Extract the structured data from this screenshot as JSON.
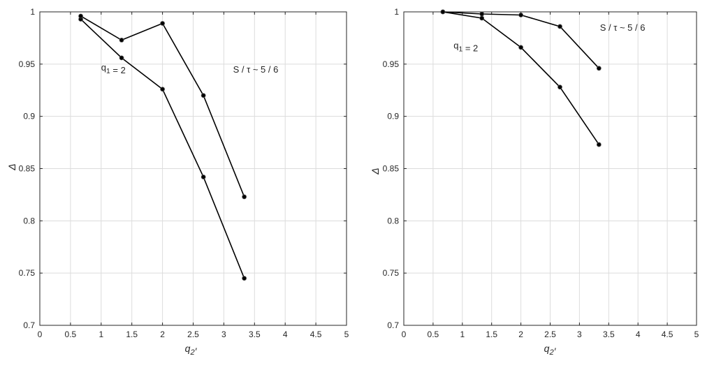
{
  "chart_data": [
    {
      "type": "line",
      "title": "",
      "xlabel": "q₂′",
      "ylabel": "Δ",
      "xlim": [
        0,
        5
      ],
      "ylim": [
        0.7,
        1
      ],
      "xticks": [
        0,
        0.5,
        1,
        1.5,
        2,
        2.5,
        3,
        3.5,
        4,
        4.5,
        5
      ],
      "xtick_labels": [
        "0",
        "0.5",
        "1",
        "1.5",
        "2",
        "2.5",
        "3",
        "3.5",
        "4",
        "4.5",
        "5"
      ],
      "yticks": [
        0.7,
        0.75,
        0.8,
        0.85,
        0.9,
        0.95,
        1
      ],
      "ytick_labels": [
        "0.7",
        "0.75",
        "0.8",
        "0.85",
        "0.9",
        "0.95",
        "1"
      ],
      "grid": true,
      "series": [
        {
          "x": [
            0.667,
            1.333,
            2.0,
            2.667,
            3.333
          ],
          "values": [
            0.993,
            0.956,
            0.926,
            0.842,
            0.745
          ]
        },
        {
          "x": [
            0.667,
            1.333,
            2.0,
            2.667,
            3.333
          ],
          "values": [
            0.996,
            0.973,
            0.989,
            0.92,
            0.823
          ]
        }
      ],
      "annotations": [
        {
          "text": "q₁ = 2",
          "x": 1.0,
          "y": 0.944
        },
        {
          "text": "S / τ ~ 5 / 6",
          "x": 3.15,
          "y": 0.942
        }
      ],
      "color": "#000000"
    },
    {
      "type": "line",
      "title": "",
      "xlabel": "q₂′",
      "ylabel": "Δ",
      "xlim": [
        0,
        5
      ],
      "ylim": [
        0.7,
        1
      ],
      "xticks": [
        0,
        0.5,
        1,
        1.5,
        2,
        2.5,
        3,
        3.5,
        4,
        4.5,
        5
      ],
      "xtick_labels": [
        "0",
        "0.5",
        "1",
        "1.5",
        "2",
        "2.5",
        "3",
        "3.5",
        "4",
        "4.5",
        "5"
      ],
      "yticks": [
        0.7,
        0.75,
        0.8,
        0.85,
        0.9,
        0.95,
        1
      ],
      "ytick_labels": [
        "0.7",
        "0.75",
        "0.8",
        "0.85",
        "0.9",
        "0.95",
        "1"
      ],
      "grid": true,
      "series": [
        {
          "x": [
            0.667,
            1.333,
            2.0,
            2.667,
            3.333
          ],
          "values": [
            1.0,
            0.994,
            0.966,
            0.928,
            0.873
          ]
        },
        {
          "x": [
            0.667,
            1.333,
            2.0,
            2.667,
            3.333
          ],
          "values": [
            1.0,
            0.998,
            0.997,
            0.986,
            0.946
          ]
        }
      ],
      "annotations": [
        {
          "text": "q₁ = 2",
          "x": 0.85,
          "y": 0.965
        },
        {
          "text": "S / τ ~ 5 / 6",
          "x": 3.35,
          "y": 0.982
        }
      ],
      "color": "#000000"
    }
  ]
}
